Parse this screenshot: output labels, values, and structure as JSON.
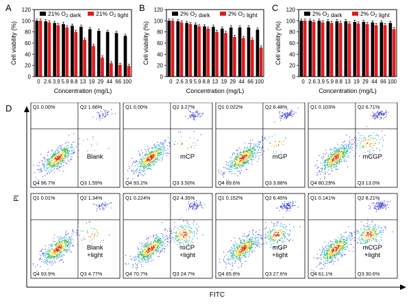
{
  "chart_data": [
    {
      "panel": "A",
      "type": "bar",
      "xlabel": "Concentration (mg/L)",
      "ylabel": "Cell viability (%)",
      "ylim": [
        0,
        120
      ],
      "yticks": [
        0,
        20,
        40,
        60,
        80,
        100,
        120
      ],
      "categories": [
        "0",
        "2.6",
        "3.9",
        "5.9",
        "8.8",
        "13",
        "19",
        "29",
        "44",
        "66",
        "100"
      ],
      "legend": [
        "21% O₂ dark",
        "21% O₂ light"
      ],
      "series": [
        {
          "name": "21% O₂ dark",
          "color": "#000000",
          "values": [
            100,
            99,
            96,
            94,
            91,
            89,
            85,
            82,
            80,
            78,
            73
          ]
        },
        {
          "name": "21% O₂ light",
          "color": "#e31a1c",
          "values": [
            100,
            97,
            92,
            88,
            80,
            66,
            55,
            34,
            24,
            21,
            19
          ]
        }
      ]
    },
    {
      "panel": "B",
      "type": "bar",
      "xlabel": "Concentration (mg/L)",
      "ylabel": "Cell viability (%)",
      "ylim": [
        0,
        120
      ],
      "yticks": [
        0,
        20,
        40,
        60,
        80,
        100,
        120
      ],
      "categories": [
        "0",
        "2.6",
        "3.9",
        "5.9",
        "8.8",
        "13",
        "19",
        "29",
        "44",
        "66",
        "100"
      ],
      "legend": [
        "2% O₂ dark",
        "2% O₂ light"
      ],
      "series": [
        {
          "name": "2% O₂ dark",
          "color": "#000000",
          "values": [
            100,
            99,
            96,
            93,
            90,
            89,
            86,
            88,
            88,
            88,
            84
          ]
        },
        {
          "name": "2% O₂ light",
          "color": "#e31a1c",
          "values": [
            100,
            97,
            94,
            90,
            86,
            80,
            78,
            71,
            69,
            66,
            52
          ]
        }
      ]
    },
    {
      "panel": "C",
      "type": "bar",
      "xlabel": "Concentration (mg/L)",
      "ylabel": "Cell viability (%)",
      "ylim": [
        0,
        120
      ],
      "yticks": [
        0,
        20,
        40,
        60,
        80,
        100,
        120
      ],
      "categories": [
        "0",
        "2.6",
        "3.9",
        "5.9",
        "8.8",
        "13",
        "19",
        "29",
        "44",
        "66",
        "100"
      ],
      "legend": [
        "2% O₂ dark",
        "2% O₂ light"
      ],
      "series": [
        {
          "name": "2% O₂ dark",
          "color": "#000000",
          "values": [
            100,
            100,
            100,
            99,
            99,
            99,
            98,
            98,
            97,
            97,
            96
          ]
        },
        {
          "name": "2% O₂ light",
          "color": "#e31a1c",
          "values": [
            100,
            98,
            97,
            96,
            96,
            95,
            95,
            94,
            92,
            92,
            85
          ]
        }
      ]
    },
    {
      "panel": "D",
      "type": "scatter",
      "xlabel": "FITC",
      "ylabel": "PI",
      "plots": [
        {
          "label": "Blank",
          "q1": "Q1 0.00%",
          "q2": "Q2 1.66%",
          "q3": "Q3 1.59%",
          "q4": "Q4 96.7%"
        },
        {
          "label": "mCP",
          "q1": "Q1 0.00%",
          "q2": "Q2 3.27%",
          "q3": "Q3 3.50%",
          "q4": "Q4 93.2%"
        },
        {
          "label": "mGP",
          "q1": "Q1 0.022%",
          "q2": "Q2 6.48%",
          "q3": "Q3 3.88%",
          "q4": "Q4 89.6%"
        },
        {
          "label": "mCGP",
          "q1": "Q1 0.103%",
          "q2": "Q2 6.71%",
          "q3": "Q3 13.0%",
          "q4": "Q4 80.23%"
        },
        {
          "label": "Blank +light",
          "q1": "Q1 0.01%",
          "q2": "Q2 1.34%",
          "q3": "Q3 4.77%",
          "q4": "Q4 93.9%"
        },
        {
          "label": "mCP +light",
          "q1": "Q1 0.224%",
          "q2": "Q2 4.35%",
          "q3": "Q3 24.7%",
          "q4": "Q4 70.7%"
        },
        {
          "label": "mGP +light",
          "q1": "Q1 0.152%",
          "q2": "Q2 6.45%",
          "q3": "Q3 27.6%",
          "q4": "Q4 65.8%"
        },
        {
          "label": "mCGP +light",
          "q1": "Q1 0.141%",
          "q2": "Q2 8.21%",
          "q3": "Q3 30.6%",
          "q4": "Q4 61.1%"
        }
      ]
    }
  ]
}
